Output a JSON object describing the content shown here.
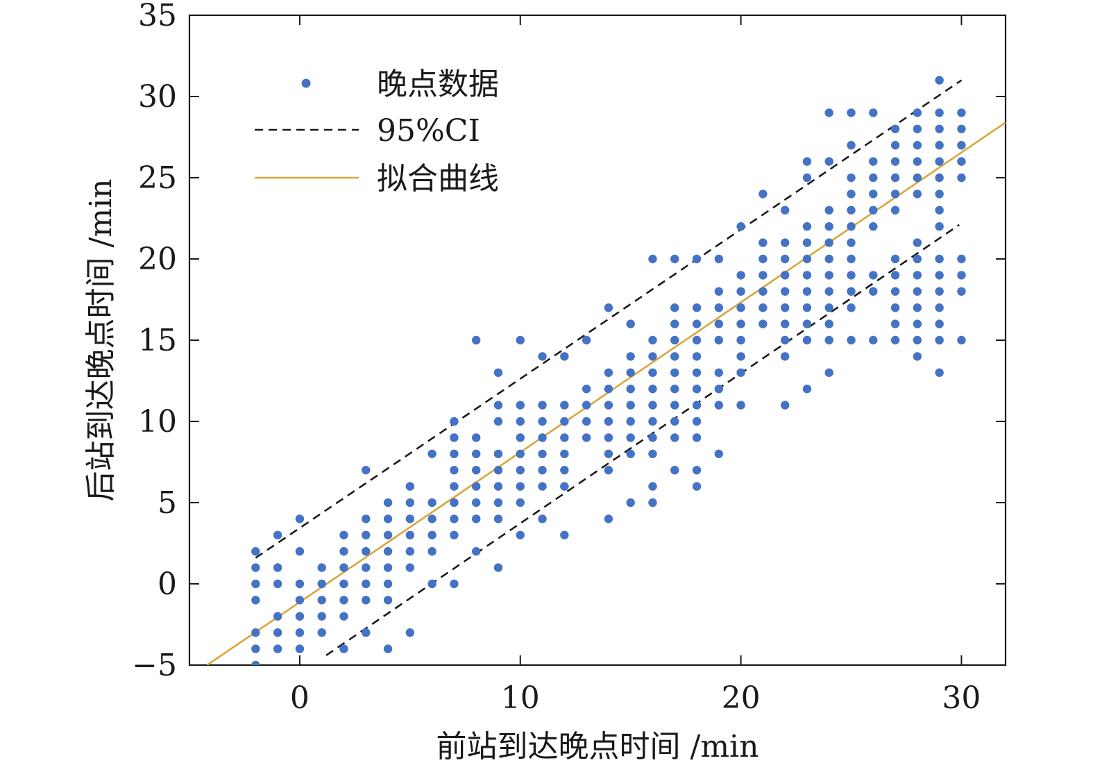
{
  "chart_data": {
    "type": "scatter",
    "title": "",
    "xlabel": "前站到达晚点时间 /min",
    "ylabel": "后站到达晚点时间 /min",
    "xlim": [
      -5,
      32
    ],
    "ylim": [
      -5,
      35
    ],
    "xticks": [
      0,
      10,
      20,
      30
    ],
    "yticks": [
      -5,
      0,
      5,
      10,
      15,
      20,
      25,
      30,
      35
    ],
    "grid": false,
    "legend_position": "top-left",
    "colors": {
      "points": "#4472c4",
      "ci": "#1a1a1a",
      "fit": "#d9a63a",
      "axis": "#1a1a1a"
    },
    "legend": [
      {
        "label": "晚点数据",
        "kind": "marker"
      },
      {
        "label": "95%CI",
        "kind": "dashed"
      },
      {
        "label": "拟合曲线",
        "kind": "line"
      }
    ],
    "series": [
      {
        "name": "晚点数据",
        "type": "scatter",
        "points": [
          [
            -2,
            2
          ],
          [
            -2,
            1
          ],
          [
            -2,
            0
          ],
          [
            -2,
            -1
          ],
          [
            -2,
            -3
          ],
          [
            -2,
            -4
          ],
          [
            -2,
            -5
          ],
          [
            -1,
            3
          ],
          [
            -1,
            1
          ],
          [
            -1,
            0
          ],
          [
            -1,
            -2
          ],
          [
            -1,
            -3
          ],
          [
            -1,
            -4
          ],
          [
            0,
            4
          ],
          [
            0,
            2
          ],
          [
            0,
            0
          ],
          [
            0,
            -1
          ],
          [
            0,
            -2
          ],
          [
            0,
            -3
          ],
          [
            0,
            -4
          ],
          [
            1,
            1
          ],
          [
            1,
            0
          ],
          [
            1,
            -1
          ],
          [
            1,
            -2
          ],
          [
            1,
            -3
          ],
          [
            2,
            3
          ],
          [
            2,
            2
          ],
          [
            2,
            1
          ],
          [
            2,
            0
          ],
          [
            2,
            -1
          ],
          [
            2,
            -2
          ],
          [
            2,
            -4
          ],
          [
            3,
            7
          ],
          [
            3,
            4
          ],
          [
            3,
            3
          ],
          [
            3,
            2
          ],
          [
            3,
            1
          ],
          [
            3,
            0
          ],
          [
            3,
            -1
          ],
          [
            3,
            -3
          ],
          [
            4,
            5
          ],
          [
            4,
            4
          ],
          [
            4,
            3
          ],
          [
            4,
            2
          ],
          [
            4,
            1
          ],
          [
            4,
            0
          ],
          [
            4,
            -1
          ],
          [
            4,
            -4
          ],
          [
            5,
            6
          ],
          [
            5,
            5
          ],
          [
            5,
            4
          ],
          [
            5,
            3
          ],
          [
            5,
            2
          ],
          [
            5,
            1
          ],
          [
            5,
            -3
          ],
          [
            6,
            8
          ],
          [
            6,
            5
          ],
          [
            6,
            4
          ],
          [
            6,
            3
          ],
          [
            6,
            2
          ],
          [
            6,
            0
          ],
          [
            7,
            10
          ],
          [
            7,
            9
          ],
          [
            7,
            8
          ],
          [
            7,
            7
          ],
          [
            7,
            6
          ],
          [
            7,
            5
          ],
          [
            7,
            4
          ],
          [
            7,
            3
          ],
          [
            7,
            0
          ],
          [
            8,
            15
          ],
          [
            8,
            9
          ],
          [
            8,
            8
          ],
          [
            8,
            7
          ],
          [
            8,
            6
          ],
          [
            8,
            5
          ],
          [
            8,
            4
          ],
          [
            8,
            2
          ],
          [
            9,
            13
          ],
          [
            9,
            11
          ],
          [
            9,
            10
          ],
          [
            9,
            8
          ],
          [
            9,
            7
          ],
          [
            9,
            6
          ],
          [
            9,
            5
          ],
          [
            9,
            4
          ],
          [
            9,
            1
          ],
          [
            10,
            15
          ],
          [
            10,
            11
          ],
          [
            10,
            10
          ],
          [
            10,
            9
          ],
          [
            10,
            8
          ],
          [
            10,
            7
          ],
          [
            10,
            6
          ],
          [
            10,
            5
          ],
          [
            10,
            3
          ],
          [
            11,
            14
          ],
          [
            11,
            11
          ],
          [
            11,
            10
          ],
          [
            11,
            9
          ],
          [
            11,
            8
          ],
          [
            11,
            7
          ],
          [
            11,
            6
          ],
          [
            11,
            4
          ],
          [
            12,
            14
          ],
          [
            12,
            11
          ],
          [
            12,
            10
          ],
          [
            12,
            9
          ],
          [
            12,
            8
          ],
          [
            12,
            7
          ],
          [
            12,
            6
          ],
          [
            12,
            3
          ],
          [
            13,
            15
          ],
          [
            13,
            12
          ],
          [
            13,
            11
          ],
          [
            13,
            10
          ],
          [
            13,
            9
          ],
          [
            14,
            17
          ],
          [
            14,
            13
          ],
          [
            14,
            12
          ],
          [
            14,
            11
          ],
          [
            14,
            10
          ],
          [
            14,
            9
          ],
          [
            14,
            8
          ],
          [
            14,
            7
          ],
          [
            14,
            4
          ],
          [
            15,
            16
          ],
          [
            15,
            14
          ],
          [
            15,
            13
          ],
          [
            15,
            12
          ],
          [
            15,
            11
          ],
          [
            15,
            10
          ],
          [
            15,
            9
          ],
          [
            15,
            8
          ],
          [
            15,
            5
          ],
          [
            16,
            20
          ],
          [
            16,
            15
          ],
          [
            16,
            14
          ],
          [
            16,
            13
          ],
          [
            16,
            12
          ],
          [
            16,
            11
          ],
          [
            16,
            10
          ],
          [
            16,
            9
          ],
          [
            16,
            8
          ],
          [
            16,
            6
          ],
          [
            16,
            5
          ],
          [
            17,
            20
          ],
          [
            17,
            17
          ],
          [
            17,
            16
          ],
          [
            17,
            15
          ],
          [
            17,
            14
          ],
          [
            17,
            13
          ],
          [
            17,
            12
          ],
          [
            17,
            11
          ],
          [
            17,
            10
          ],
          [
            17,
            9
          ],
          [
            17,
            7
          ],
          [
            18,
            20
          ],
          [
            18,
            17
          ],
          [
            18,
            16
          ],
          [
            18,
            15
          ],
          [
            18,
            14
          ],
          [
            18,
            13
          ],
          [
            18,
            12
          ],
          [
            18,
            11
          ],
          [
            18,
            10
          ],
          [
            18,
            9
          ],
          [
            18,
            7
          ],
          [
            18,
            6
          ],
          [
            19,
            20
          ],
          [
            19,
            18
          ],
          [
            19,
            17
          ],
          [
            19,
            16
          ],
          [
            19,
            15
          ],
          [
            19,
            13
          ],
          [
            19,
            12
          ],
          [
            19,
            11
          ],
          [
            19,
            8
          ],
          [
            20,
            22
          ],
          [
            20,
            19
          ],
          [
            20,
            18
          ],
          [
            20,
            17
          ],
          [
            20,
            16
          ],
          [
            20,
            15
          ],
          [
            20,
            14
          ],
          [
            20,
            13
          ],
          [
            20,
            11
          ],
          [
            21,
            24
          ],
          [
            21,
            21
          ],
          [
            21,
            20
          ],
          [
            21,
            19
          ],
          [
            21,
            18
          ],
          [
            21,
            17
          ],
          [
            21,
            16
          ],
          [
            22,
            23
          ],
          [
            22,
            21
          ],
          [
            22,
            20
          ],
          [
            22,
            19
          ],
          [
            22,
            18
          ],
          [
            22,
            17
          ],
          [
            22,
            16
          ],
          [
            22,
            15
          ],
          [
            22,
            14
          ],
          [
            22,
            11
          ],
          [
            23,
            26
          ],
          [
            23,
            25
          ],
          [
            23,
            22
          ],
          [
            23,
            21
          ],
          [
            23,
            20
          ],
          [
            23,
            19
          ],
          [
            23,
            18
          ],
          [
            23,
            17
          ],
          [
            23,
            16
          ],
          [
            23,
            15
          ],
          [
            23,
            12
          ],
          [
            24,
            29
          ],
          [
            24,
            26
          ],
          [
            24,
            23
          ],
          [
            24,
            22
          ],
          [
            24,
            21
          ],
          [
            24,
            20
          ],
          [
            24,
            19
          ],
          [
            24,
            18
          ],
          [
            24,
            17
          ],
          [
            24,
            16
          ],
          [
            24,
            15
          ],
          [
            24,
            13
          ],
          [
            25,
            29
          ],
          [
            25,
            27
          ],
          [
            25,
            25
          ],
          [
            25,
            24
          ],
          [
            25,
            23
          ],
          [
            25,
            22
          ],
          [
            25,
            21
          ],
          [
            25,
            20
          ],
          [
            25,
            19
          ],
          [
            25,
            18
          ],
          [
            25,
            17
          ],
          [
            25,
            15
          ],
          [
            26,
            29
          ],
          [
            26,
            26
          ],
          [
            26,
            25
          ],
          [
            26,
            24
          ],
          [
            26,
            23
          ],
          [
            26,
            22
          ],
          [
            26,
            19
          ],
          [
            26,
            18
          ],
          [
            26,
            15
          ],
          [
            27,
            28
          ],
          [
            27,
            27
          ],
          [
            27,
            26
          ],
          [
            27,
            25
          ],
          [
            27,
            24
          ],
          [
            27,
            23
          ],
          [
            27,
            20
          ],
          [
            27,
            19
          ],
          [
            27,
            18
          ],
          [
            27,
            17
          ],
          [
            27,
            16
          ],
          [
            27,
            15
          ],
          [
            28,
            29
          ],
          [
            28,
            28
          ],
          [
            28,
            27
          ],
          [
            28,
            26
          ],
          [
            28,
            25
          ],
          [
            28,
            24
          ],
          [
            28,
            21
          ],
          [
            28,
            20
          ],
          [
            28,
            19
          ],
          [
            28,
            18
          ],
          [
            28,
            17
          ],
          [
            28,
            16
          ],
          [
            28,
            15
          ],
          [
            28,
            14
          ],
          [
            29,
            31
          ],
          [
            29,
            29
          ],
          [
            29,
            28
          ],
          [
            29,
            27
          ],
          [
            29,
            26
          ],
          [
            29,
            25
          ],
          [
            29,
            24
          ],
          [
            29,
            23
          ],
          [
            29,
            22
          ],
          [
            29,
            20
          ],
          [
            29,
            19
          ],
          [
            29,
            18
          ],
          [
            29,
            17
          ],
          [
            29,
            16
          ],
          [
            29,
            15
          ],
          [
            29,
            13
          ],
          [
            30,
            29
          ],
          [
            30,
            28
          ],
          [
            30,
            27
          ],
          [
            30,
            26
          ],
          [
            30,
            25
          ],
          [
            30,
            20
          ],
          [
            30,
            19
          ],
          [
            30,
            18
          ],
          [
            30,
            15
          ]
        ]
      },
      {
        "name": "95%CI",
        "type": "line",
        "style": "dashed",
        "segments": [
          [
            [
              -2,
              1.6
            ],
            [
              30,
              31.0
            ]
          ],
          [
            [
              1.2,
              -4.4
            ],
            [
              29.9,
              22.1
            ]
          ]
        ]
      },
      {
        "name": "拟合曲线",
        "type": "line",
        "style": "solid",
        "x": [
          -4.2,
          32
        ],
        "y": [
          -5,
          28.4
        ]
      }
    ]
  }
}
